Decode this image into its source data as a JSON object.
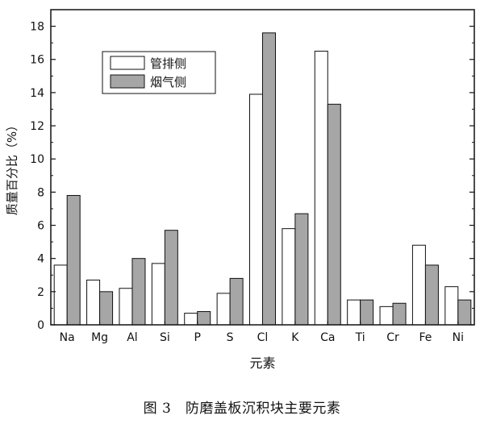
{
  "chart_data": {
    "type": "bar",
    "categories": [
      "Na",
      "Mg",
      "Al",
      "Si",
      "P",
      "S",
      "Cl",
      "K",
      "Ca",
      "Ti",
      "Cr",
      "Fe",
      "Ni"
    ],
    "series": [
      {
        "name": "管排侧",
        "color": "#ffffff",
        "values": [
          3.6,
          2.7,
          2.2,
          3.7,
          0.7,
          1.9,
          13.9,
          5.8,
          16.5,
          1.5,
          1.1,
          4.8,
          2.3
        ]
      },
      {
        "name": "烟气侧",
        "color": "#a6a6a6",
        "values": [
          7.8,
          2.0,
          4.0,
          5.7,
          0.8,
          2.8,
          17.6,
          6.7,
          13.3,
          1.5,
          1.3,
          3.6,
          1.5
        ]
      }
    ],
    "xlabel": "元素",
    "ylabel": "质量百分比（%）",
    "ylim": [
      0,
      19
    ],
    "yticks": [
      0,
      2,
      4,
      6,
      8,
      10,
      12,
      14,
      16,
      18
    ],
    "grid": false,
    "legend_position": "top-left"
  },
  "caption": "图 3　防磨盖板沉积块主要元素"
}
